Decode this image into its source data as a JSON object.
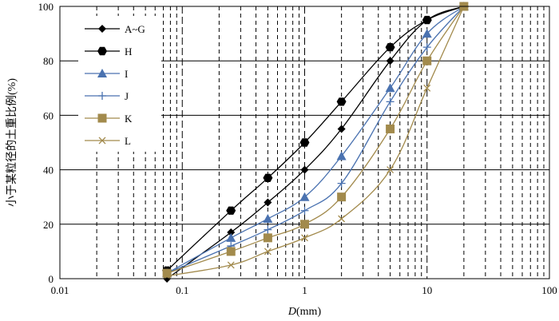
{
  "chart_data": {
    "type": "line",
    "x_scale": "log",
    "xlim": [
      0.01,
      100
    ],
    "ylim": [
      0,
      100
    ],
    "xticks": [
      "0.01",
      "0.1",
      "1",
      "10",
      "100"
    ],
    "yticks": [
      "0",
      "20",
      "40",
      "60",
      "80",
      "100"
    ],
    "xlabel_italic": "D",
    "xlabel_rest": "(mm)",
    "ylabel": "小于某粒径的土重比例(%)",
    "grid": true,
    "legend_position": "top-left",
    "series": [
      {
        "name": "A~G",
        "color": "#000000",
        "marker": "diamond",
        "x": [
          0.075,
          0.25,
          0.5,
          1,
          2,
          5,
          10,
          20
        ],
        "y": [
          0,
          17,
          28,
          40,
          55,
          80,
          95,
          100
        ]
      },
      {
        "name": "H",
        "color": "#000000",
        "marker": "hexagon",
        "x": [
          0.075,
          0.25,
          0.5,
          1,
          2,
          5,
          10,
          20
        ],
        "y": [
          3,
          25,
          37,
          50,
          65,
          85,
          95,
          100
        ]
      },
      {
        "name": "I",
        "color": "#4a72b0",
        "marker": "triangle",
        "x": [
          0.075,
          0.25,
          0.5,
          1,
          2,
          5,
          10,
          20
        ],
        "y": [
          2,
          15,
          22,
          30,
          45,
          70,
          90,
          100
        ]
      },
      {
        "name": "J",
        "color": "#4a72b0",
        "marker": "plus",
        "x": [
          0.075,
          0.25,
          0.5,
          1,
          2,
          5,
          10,
          20
        ],
        "y": [
          2,
          12,
          18,
          25,
          35,
          65,
          85,
          100
        ]
      },
      {
        "name": "K",
        "color": "#a28a4c",
        "marker": "square",
        "x": [
          0.075,
          0.25,
          0.5,
          1,
          2,
          5,
          10,
          20
        ],
        "y": [
          2,
          10,
          15,
          20,
          30,
          55,
          80,
          100
        ]
      },
      {
        "name": "L",
        "color": "#a28a4c",
        "marker": "cross",
        "x": [
          0.075,
          0.25,
          0.5,
          1,
          2,
          5,
          10,
          20
        ],
        "y": [
          1,
          5,
          10,
          15,
          22,
          40,
          70,
          100
        ]
      }
    ]
  }
}
